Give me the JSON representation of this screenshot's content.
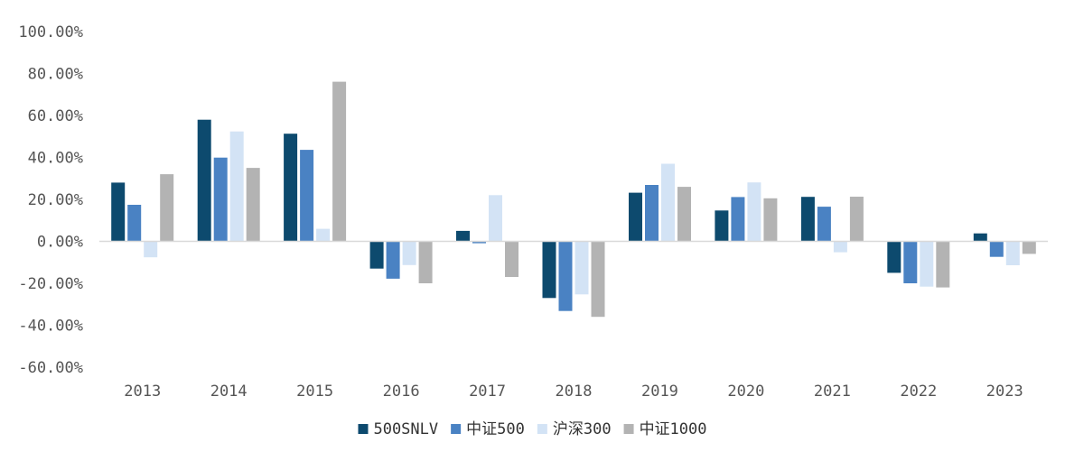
{
  "chart_data": {
    "type": "bar",
    "title": "",
    "xlabel": "",
    "ylabel": "",
    "ylim": [
      -60,
      100
    ],
    "ytick_step": 20,
    "ytick_labels": [
      "100.00%",
      "80.00%",
      "60.00%",
      "40.00%",
      "20.00%",
      "0.00%",
      "-20.00%",
      "-40.00%",
      "-60.00%"
    ],
    "categories": [
      "2013",
      "2014",
      "2015",
      "2016",
      "2017",
      "2018",
      "2019",
      "2020",
      "2021",
      "2022",
      "2023"
    ],
    "series": [
      {
        "name": "500SNLV",
        "color": "#0d4a6e",
        "values": [
          28.0,
          58.0,
          51.3,
          -13.0,
          5.0,
          -27.0,
          23.2,
          14.7,
          21.2,
          -15.0,
          3.8
        ]
      },
      {
        "name": "中证500",
        "color": "#4a82c3",
        "values": [
          17.4,
          39.9,
          43.6,
          -17.8,
          -0.9,
          -33.2,
          26.9,
          21.1,
          16.5,
          -20.0,
          -7.4
        ]
      },
      {
        "name": "沪深300",
        "color": "#d3e3f5",
        "values": [
          -7.6,
          52.4,
          6.0,
          -11.3,
          22.0,
          -25.3,
          37.0,
          28.1,
          -5.2,
          -21.6,
          -11.4
        ]
      },
      {
        "name": "中证1000",
        "color": "#b3b3b3",
        "values": [
          32.0,
          35.0,
          76.1,
          -20.0,
          -17.0,
          -36.0,
          26.0,
          20.5,
          21.3,
          -22.0,
          -6.0
        ]
      }
    ],
    "legend_position": "bottom",
    "grid": false
  }
}
